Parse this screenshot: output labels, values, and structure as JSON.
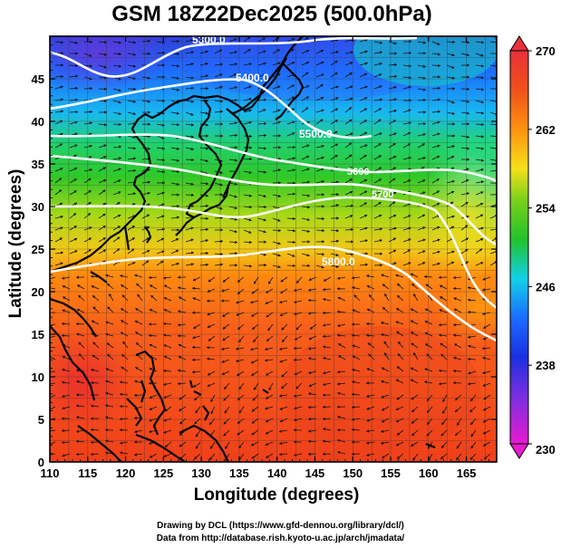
{
  "title": "GSM 18Z22Dec2025 (500.0hPa)",
  "xlabel": "Longitude (degrees)",
  "ylabel": "Latitude  (degrees)",
  "x_ticks": [
    "110",
    "115",
    "120",
    "125",
    "130",
    "135",
    "140",
    "145",
    "150",
    "155",
    "160",
    "165"
  ],
  "y_ticks": [
    "0",
    "5",
    "10",
    "15",
    "20",
    "25",
    "30",
    "35",
    "40",
    "45"
  ],
  "colorbar_ticks": [
    "230",
    "238",
    "246",
    "254",
    "262",
    "270"
  ],
  "contours": [
    {
      "label": "5300.0"
    },
    {
      "label": "5400.0"
    },
    {
      "label": "5500.0"
    },
    {
      "label": "5600"
    },
    {
      "label": "5700"
    },
    {
      "label": "5800.0"
    }
  ],
  "credits": [
    "Drawing by DCL (https://www.gfd-dennou.org/library/dcl/)",
    "Data from http://database.rish.kyoto-u.ac.jp/arch/jmadata/"
  ],
  "colors": {
    "cold": "#7a2fe0",
    "blue": "#1b5cff",
    "cyan": "#12d0e8",
    "green": "#22c22a",
    "yellow": "#f6e01a",
    "orange": "#ff9210",
    "red": "#f0301a",
    "contour": "#ffffff"
  },
  "chart_data": {
    "type": "heatmap",
    "title": "GSM 18Z22Dec2025 (500.0hPa)",
    "xlabel": "Longitude (degrees)",
    "ylabel": "Latitude  (degrees)",
    "xlim": [
      110,
      169
    ],
    "ylim": [
      0,
      50
    ],
    "colorbar": {
      "min": 230,
      "max": 270,
      "ticks": [
        230,
        238,
        246,
        254,
        262,
        270
      ]
    },
    "contour_levels": [
      5300,
      5400,
      5500,
      5600,
      5700,
      5800
    ],
    "overlays": [
      "streamlines",
      "coastlines",
      "grid"
    ]
  }
}
